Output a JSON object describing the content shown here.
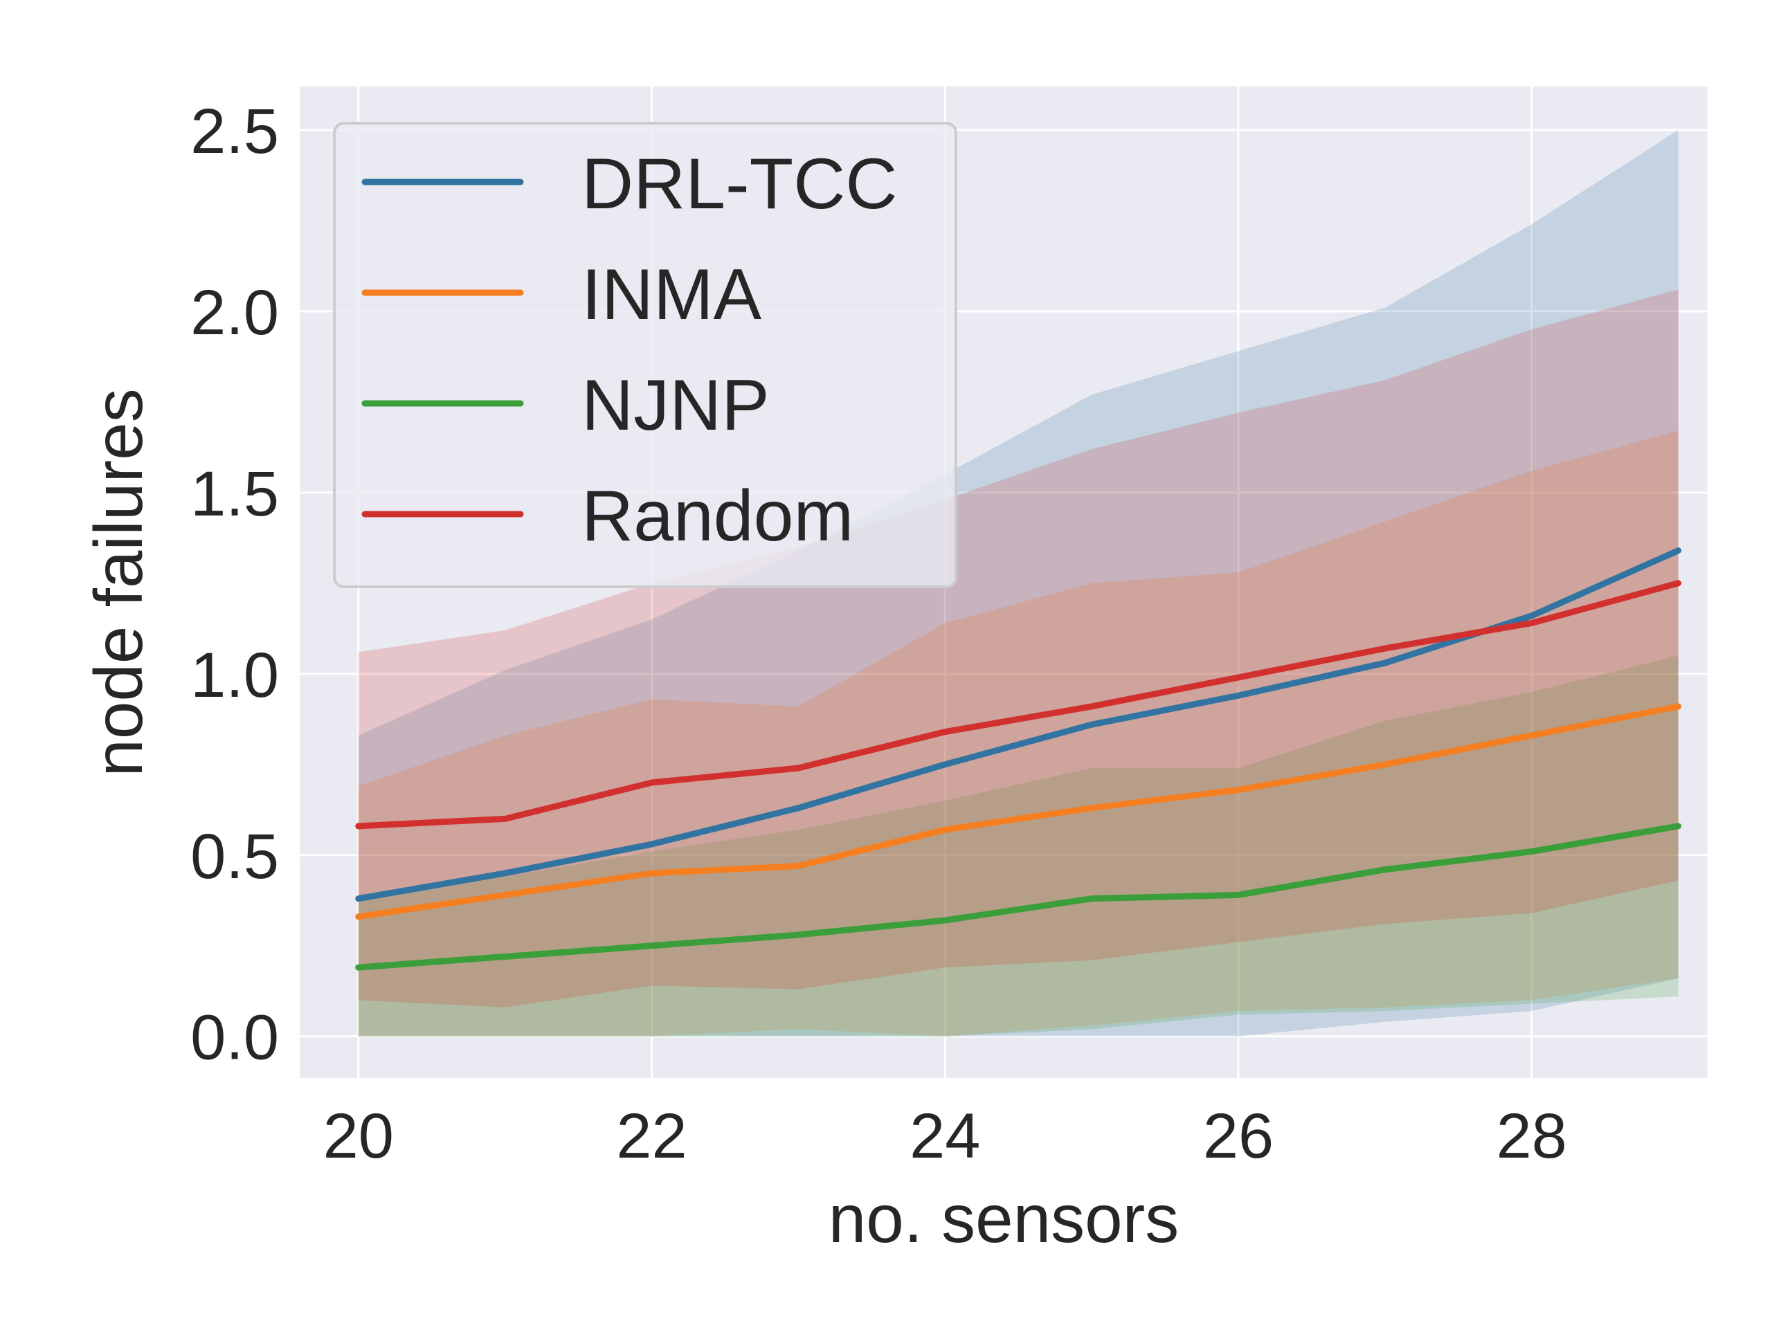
{
  "chart_data": {
    "type": "line",
    "xlabel": "no. sensors",
    "ylabel": "node failures",
    "xlim": [
      19.6,
      29.2
    ],
    "ylim": [
      -0.115,
      2.62
    ],
    "x_ticks": [
      "20",
      "22",
      "24",
      "26",
      "28"
    ],
    "y_ticks": [
      "0.0",
      "0.5",
      "1.0",
      "1.5",
      "2.0",
      "2.5"
    ],
    "grid": true,
    "legend_position": "upper-left",
    "x": [
      20,
      21,
      22,
      23,
      24,
      25,
      26,
      27,
      28,
      29
    ],
    "series": [
      {
        "name": "DRL-TCC",
        "color": "#3274a1",
        "values": [
          0.38,
          0.45,
          0.53,
          0.63,
          0.75,
          0.86,
          0.94,
          1.03,
          1.16,
          1.34
        ],
        "band_low": [
          0.0,
          0.0,
          0.0,
          0.0,
          0.0,
          0.0,
          0.0,
          0.04,
          0.07,
          0.16
        ],
        "band_high": [
          0.83,
          1.01,
          1.15,
          1.34,
          1.55,
          1.77,
          1.89,
          2.01,
          2.24,
          2.5
        ]
      },
      {
        "name": "INMA",
        "color": "#f57f20",
        "values": [
          0.33,
          0.39,
          0.45,
          0.47,
          0.57,
          0.63,
          0.68,
          0.75,
          0.83,
          0.91
        ],
        "band_low": [
          0.0,
          0.0,
          0.0,
          0.02,
          0.0,
          0.03,
          0.07,
          0.08,
          0.1,
          0.16
        ],
        "band_high": [
          0.69,
          0.83,
          0.93,
          0.91,
          1.14,
          1.25,
          1.28,
          1.42,
          1.56,
          1.67
        ]
      },
      {
        "name": "NJNP",
        "color": "#3a9e3a",
        "values": [
          0.19,
          0.22,
          0.25,
          0.28,
          0.32,
          0.38,
          0.39,
          0.46,
          0.51,
          0.58
        ],
        "band_low": [
          0.0,
          0.0,
          0.0,
          0.0,
          0.0,
          0.02,
          0.06,
          0.07,
          0.09,
          0.11
        ],
        "band_high": [
          0.39,
          0.44,
          0.51,
          0.57,
          0.65,
          0.74,
          0.74,
          0.87,
          0.95,
          1.05
        ]
      },
      {
        "name": "Random",
        "color": "#d2302f",
        "values": [
          0.58,
          0.6,
          0.7,
          0.74,
          0.84,
          0.91,
          0.99,
          1.07,
          1.14,
          1.25
        ],
        "band_low": [
          0.1,
          0.08,
          0.14,
          0.13,
          0.19,
          0.21,
          0.26,
          0.31,
          0.34,
          0.43
        ],
        "band_high": [
          1.06,
          1.12,
          1.25,
          1.35,
          1.48,
          1.62,
          1.72,
          1.81,
          1.95,
          2.06
        ]
      }
    ]
  }
}
